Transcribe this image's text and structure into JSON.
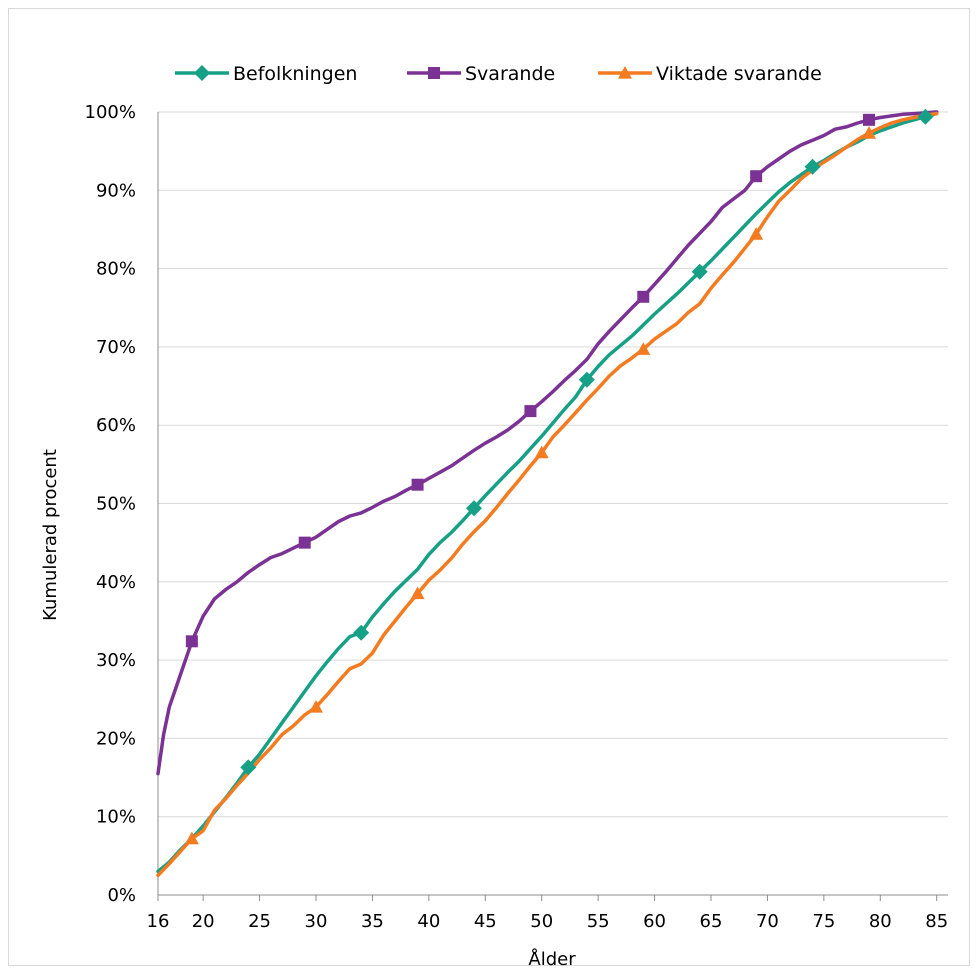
{
  "chart_data": {
    "type": "line",
    "xlabel": "Ålder",
    "ylabel": "Kumulerad procent",
    "xlim": [
      16,
      86
    ],
    "ylim": [
      0,
      100
    ],
    "x_ticks": [
      16,
      20,
      25,
      30,
      35,
      40,
      45,
      50,
      55,
      60,
      65,
      70,
      75,
      80,
      85
    ],
    "y_ticks": [
      0,
      10,
      20,
      30,
      40,
      50,
      60,
      70,
      80,
      90,
      100
    ],
    "y_tick_labels": [
      "0%",
      "10%",
      "20%",
      "30%",
      "40%",
      "50%",
      "60%",
      "70%",
      "80%",
      "90%",
      "100%"
    ],
    "grid": "horizontal",
    "legend_position": "top",
    "series": [
      {
        "name": "Befolkningen",
        "color": "#16a085",
        "marker": "diamond",
        "marker_x": [
          24,
          34,
          44,
          54,
          64,
          74,
          84
        ],
        "points": [
          [
            16,
            3
          ],
          [
            17,
            4.2
          ],
          [
            18,
            5.8
          ],
          [
            19,
            7.2
          ],
          [
            20,
            8.8
          ],
          [
            21,
            10.6
          ],
          [
            22,
            12.4
          ],
          [
            23,
            14.3
          ],
          [
            24,
            16.3
          ],
          [
            25,
            18
          ],
          [
            26,
            20
          ],
          [
            27,
            22
          ],
          [
            28,
            24
          ],
          [
            29,
            26
          ],
          [
            30,
            28
          ],
          [
            31,
            29.8
          ],
          [
            32,
            31.5
          ],
          [
            33,
            33
          ],
          [
            34,
            33.5
          ],
          [
            35,
            35.5
          ],
          [
            36,
            37.2
          ],
          [
            37,
            38.8
          ],
          [
            38,
            40.2
          ],
          [
            39,
            41.6
          ],
          [
            40,
            43.5
          ],
          [
            41,
            45
          ],
          [
            42,
            46.3
          ],
          [
            43,
            47.8
          ],
          [
            44,
            49.4
          ],
          [
            45,
            51
          ],
          [
            46,
            52.5
          ],
          [
            47,
            54
          ],
          [
            48,
            55.4
          ],
          [
            49,
            57
          ],
          [
            50,
            58.6
          ],
          [
            51,
            60.3
          ],
          [
            52,
            62
          ],
          [
            53,
            63.6
          ],
          [
            54,
            65.8
          ],
          [
            55,
            67.5
          ],
          [
            56,
            69
          ],
          [
            57,
            70.2
          ],
          [
            58,
            71.4
          ],
          [
            59,
            72.8
          ],
          [
            60,
            74.2
          ],
          [
            61,
            75.5
          ],
          [
            62,
            76.8
          ],
          [
            63,
            78.2
          ],
          [
            64,
            79.6
          ],
          [
            65,
            81
          ],
          [
            66,
            82.5
          ],
          [
            67,
            84
          ],
          [
            68,
            85.5
          ],
          [
            69,
            87
          ],
          [
            70,
            88.4
          ],
          [
            71,
            89.8
          ],
          [
            72,
            91
          ],
          [
            73,
            92
          ],
          [
            74,
            93
          ],
          [
            75,
            93.8
          ],
          [
            76,
            94.7
          ],
          [
            77,
            95.5
          ],
          [
            78,
            96.2
          ],
          [
            79,
            97
          ],
          [
            80,
            97.6
          ],
          [
            81,
            98.1
          ],
          [
            82,
            98.6
          ],
          [
            83,
            99
          ],
          [
            84,
            99.4
          ],
          [
            85,
            99.8
          ]
        ]
      },
      {
        "name": "Svarande",
        "color": "#7b3294",
        "marker": "square",
        "marker_x": [
          19,
          29,
          39,
          49,
          59,
          69,
          79
        ],
        "points": [
          [
            16,
            15.5
          ],
          [
            16.5,
            20.5
          ],
          [
            17,
            24
          ],
          [
            18,
            28.2
          ],
          [
            19,
            32.4
          ],
          [
            19.5,
            34
          ],
          [
            20,
            35.6
          ],
          [
            21,
            37.8
          ],
          [
            22,
            39
          ],
          [
            23,
            40
          ],
          [
            24,
            41.2
          ],
          [
            25,
            42.2
          ],
          [
            26,
            43.1
          ],
          [
            27,
            43.6
          ],
          [
            28,
            44.3
          ],
          [
            29,
            45
          ],
          [
            30,
            45.7
          ],
          [
            31,
            46.7
          ],
          [
            32,
            47.7
          ],
          [
            33,
            48.4
          ],
          [
            34,
            48.8
          ],
          [
            35,
            49.5
          ],
          [
            36,
            50.3
          ],
          [
            37,
            50.9
          ],
          [
            38,
            51.7
          ],
          [
            39,
            52.4
          ],
          [
            40,
            53.2
          ],
          [
            41,
            54
          ],
          [
            42,
            54.8
          ],
          [
            43,
            55.8
          ],
          [
            44,
            56.8
          ],
          [
            45,
            57.7
          ],
          [
            46,
            58.5
          ],
          [
            47,
            59.4
          ],
          [
            48,
            60.5
          ],
          [
            49,
            61.8
          ],
          [
            50,
            63
          ],
          [
            51,
            64.3
          ],
          [
            52,
            65.7
          ],
          [
            53,
            67
          ],
          [
            54,
            68.4
          ],
          [
            55,
            70.4
          ],
          [
            56,
            72
          ],
          [
            57,
            73.5
          ],
          [
            58,
            75
          ],
          [
            59,
            76.4
          ],
          [
            60,
            78
          ],
          [
            61,
            79.6
          ],
          [
            62,
            81.3
          ],
          [
            63,
            83
          ],
          [
            64,
            84.5
          ],
          [
            65,
            86
          ],
          [
            66,
            87.8
          ],
          [
            67,
            88.9
          ],
          [
            68,
            90
          ],
          [
            69,
            91.8
          ],
          [
            70,
            93
          ],
          [
            71,
            94
          ],
          [
            72,
            95
          ],
          [
            73,
            95.8
          ],
          [
            74,
            96.4
          ],
          [
            75,
            97
          ],
          [
            76,
            97.8
          ],
          [
            77,
            98.1
          ],
          [
            78,
            98.6
          ],
          [
            79,
            99
          ],
          [
            80,
            99.3
          ],
          [
            81,
            99.5
          ],
          [
            82,
            99.7
          ],
          [
            83,
            99.8
          ],
          [
            84,
            99.9
          ],
          [
            85,
            100
          ]
        ]
      },
      {
        "name": "Viktade svarande",
        "color": "#f47b20",
        "marker": "triangle",
        "marker_x": [
          19,
          30,
          39,
          50,
          59,
          69,
          79
        ],
        "points": [
          [
            16,
            2.5
          ],
          [
            17,
            4
          ],
          [
            18,
            5.6
          ],
          [
            19,
            7.2
          ],
          [
            20,
            8.2
          ],
          [
            21,
            10.8
          ],
          [
            22,
            12.3
          ],
          [
            23,
            14
          ],
          [
            24,
            15.6
          ],
          [
            25,
            17.3
          ],
          [
            26,
            18.8
          ],
          [
            27,
            20.5
          ],
          [
            28,
            21.6
          ],
          [
            29,
            23
          ],
          [
            30,
            24
          ],
          [
            31,
            25.6
          ],
          [
            32,
            27.3
          ],
          [
            33,
            28.9
          ],
          [
            34,
            29.5
          ],
          [
            35,
            30.9
          ],
          [
            36,
            33.2
          ],
          [
            37,
            35
          ],
          [
            38,
            36.8
          ],
          [
            39,
            38.5
          ],
          [
            40,
            40.2
          ],
          [
            41,
            41.5
          ],
          [
            42,
            43
          ],
          [
            43,
            44.8
          ],
          [
            44,
            46.4
          ],
          [
            45,
            47.8
          ],
          [
            46,
            49.5
          ],
          [
            47,
            51.3
          ],
          [
            48,
            53
          ],
          [
            49,
            54.8
          ],
          [
            50,
            56.5
          ],
          [
            51,
            58.5
          ],
          [
            52,
            60
          ],
          [
            53,
            61.6
          ],
          [
            54,
            63.2
          ],
          [
            55,
            64.7
          ],
          [
            56,
            66.3
          ],
          [
            57,
            67.6
          ],
          [
            58,
            68.6
          ],
          [
            59,
            69.7
          ],
          [
            60,
            71
          ],
          [
            61,
            72
          ],
          [
            62,
            73
          ],
          [
            63,
            74.4
          ],
          [
            64,
            75.5
          ],
          [
            65,
            77.5
          ],
          [
            66,
            79.2
          ],
          [
            67,
            80.8
          ],
          [
            68,
            82.6
          ],
          [
            69,
            84.4
          ],
          [
            70,
            86.6
          ],
          [
            71,
            88.6
          ],
          [
            72,
            90
          ],
          [
            73,
            91.5
          ],
          [
            74,
            92.6
          ],
          [
            75,
            93.6
          ],
          [
            76,
            94.5
          ],
          [
            77,
            95.5
          ],
          [
            78,
            96.5
          ],
          [
            79,
            97.3
          ],
          [
            80,
            98
          ],
          [
            81,
            98.6
          ],
          [
            82,
            99
          ],
          [
            83,
            99.3
          ],
          [
            84,
            99.6
          ],
          [
            85,
            99.8
          ]
        ]
      }
    ]
  }
}
